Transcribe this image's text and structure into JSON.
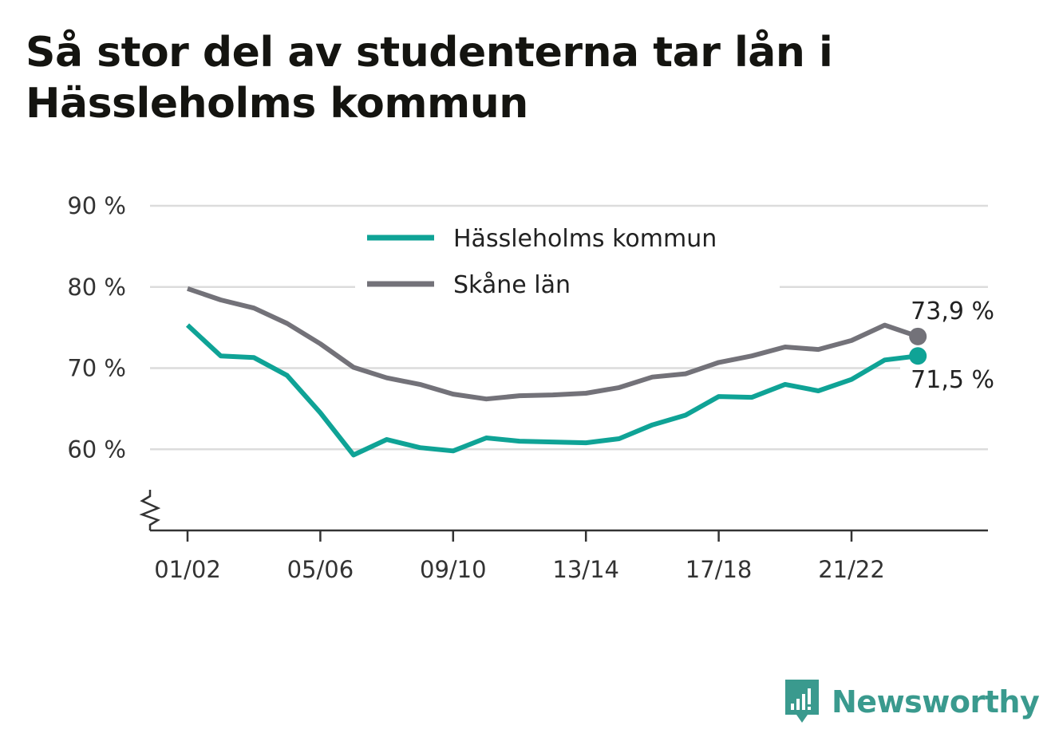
{
  "title": "Så stor del av studenterna tar lån i Hässleholms kommun",
  "brand": {
    "name": "Newsworthy",
    "icon": "newsworthy-logo-icon",
    "color": "#3a9a8e"
  },
  "chart_data": {
    "type": "line",
    "categories": [
      "01/02",
      "02/03",
      "03/04",
      "04/05",
      "05/06",
      "06/07",
      "07/08",
      "08/09",
      "09/10",
      "10/11",
      "11/12",
      "12/13",
      "13/14",
      "14/15",
      "15/16",
      "16/17",
      "17/18",
      "18/19",
      "19/20",
      "20/21",
      "21/22",
      "22/23",
      "23/24"
    ],
    "x_tick_labels": [
      "01/02",
      "05/06",
      "09/10",
      "13/14",
      "17/18",
      "21/22"
    ],
    "ylim": [
      50,
      90
    ],
    "yticks": [
      {
        "value": 60,
        "label": "60 %"
      },
      {
        "value": 70,
        "label": "70 %"
      },
      {
        "value": 80,
        "label": "80 %"
      },
      {
        "value": 90,
        "label": "90 %"
      }
    ],
    "axis_break": true,
    "grid": true,
    "legend_position": "top-center",
    "series": [
      {
        "name": "Hässleholms kommun",
        "color": "#0fa396",
        "values": [
          75.3,
          71.5,
          71.3,
          69.1,
          64.5,
          59.3,
          61.2,
          60.2,
          59.8,
          61.4,
          61.0,
          60.9,
          60.8,
          61.3,
          63.0,
          64.2,
          66.5,
          66.4,
          68.0,
          67.2,
          68.6,
          71.0,
          71.5
        ],
        "end_label": "71,5 %"
      },
      {
        "name": "Skåne län",
        "color": "#737279",
        "values": [
          79.8,
          78.4,
          77.4,
          75.5,
          73.0,
          70.1,
          68.8,
          68.0,
          66.8,
          66.2,
          66.6,
          66.7,
          66.9,
          67.6,
          68.9,
          69.3,
          70.7,
          71.5,
          72.6,
          72.3,
          73.4,
          75.3,
          73.9
        ],
        "end_label": "73,9 %"
      }
    ]
  }
}
